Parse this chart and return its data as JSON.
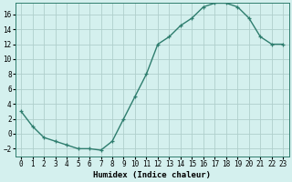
{
  "x": [
    0,
    1,
    2,
    3,
    4,
    5,
    6,
    7,
    8,
    9,
    10,
    11,
    12,
    13,
    14,
    15,
    16,
    17,
    18,
    19,
    20,
    21,
    22,
    23
  ],
  "y": [
    3.0,
    1.0,
    -0.5,
    -1.0,
    -1.5,
    -2.0,
    -2.0,
    -2.2,
    -1.0,
    2.0,
    5.0,
    8.0,
    12.0,
    13.0,
    14.5,
    15.5,
    17.0,
    17.5,
    17.5,
    17.0,
    15.5,
    13.0,
    12.0,
    12.0
  ],
  "line_color": "#2e7d6e",
  "marker": "+",
  "marker_size": 3,
  "line_width": 1.0,
  "bg_color": "#d4f0ee",
  "grid_color": "#b0cfcc",
  "xlabel": "Humidex (Indice chaleur)",
  "ylabel": "",
  "xlim": [
    -0.5,
    23.5
  ],
  "ylim": [
    -3.0,
    17.5
  ],
  "yticks": [
    -2,
    0,
    2,
    4,
    6,
    8,
    10,
    12,
    14,
    16
  ],
  "xtick_labels": [
    "0",
    "1",
    "2",
    "3",
    "4",
    "5",
    "6",
    "7",
    "8",
    "9",
    "10",
    "11",
    "12",
    "13",
    "14",
    "15",
    "16",
    "17",
    "18",
    "19",
    "20",
    "21",
    "22",
    "23"
  ],
  "xlabel_fontsize": 6.5,
  "tick_fontsize": 5.5
}
